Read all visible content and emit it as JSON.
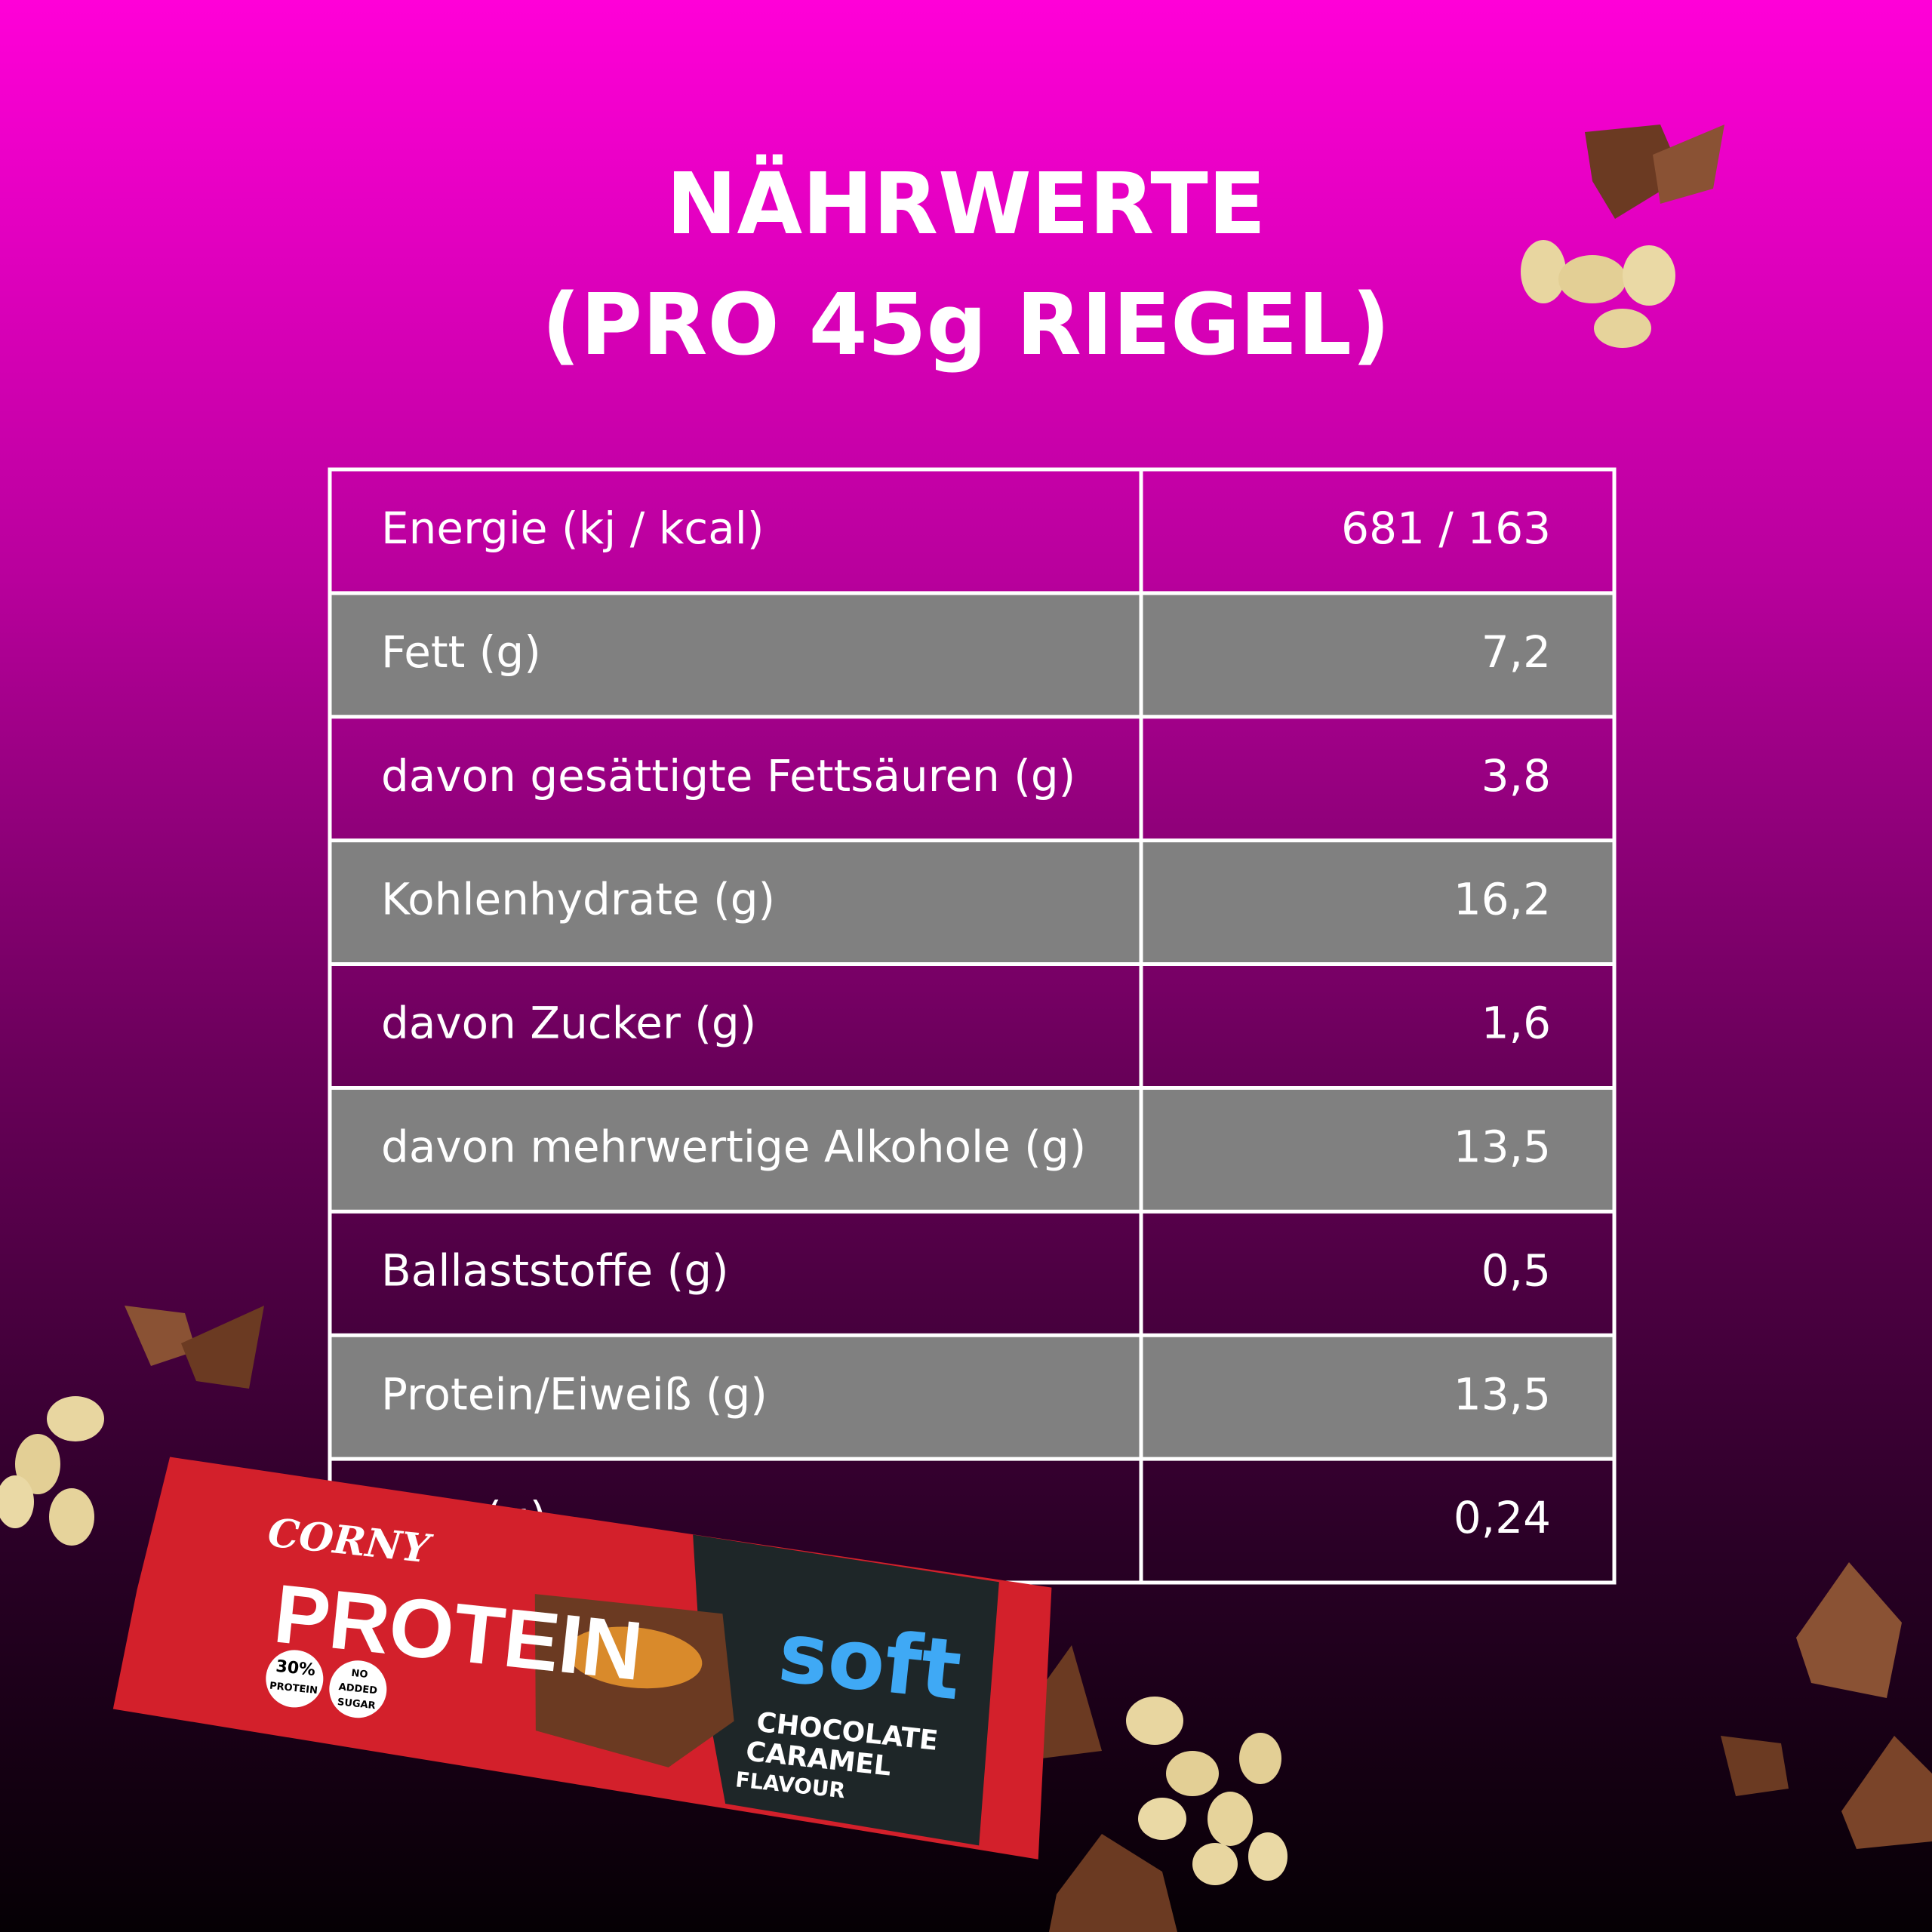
{
  "header": {
    "title": [
      "NÄHRWERTE",
      "(PRO 45g RIEGEL)"
    ]
  },
  "table": {
    "rows": [
      [
        "Energie (kj / kcal)",
        "681 / 163"
      ],
      [
        "Fett (g)",
        "7,2"
      ],
      [
        "davon gesättigte Fettsäuren (g)",
        "3,8"
      ],
      [
        "Kohlenhydrate (g)",
        "16,2"
      ],
      [
        "davon Zucker (g)",
        "1,6"
      ],
      [
        "davon mehrwertige Alkohole (g)",
        "13,5"
      ],
      [
        "Ballaststoffe (g)",
        "0,5"
      ],
      [
        "Protein/Eiweiß (g)",
        "13,5"
      ],
      [
        "Salz (g)",
        "0,24"
      ]
    ]
  },
  "package": {
    "brand": "CORNY",
    "product": "PROTEIN",
    "badge1": [
      "30%",
      "PROTEIN"
    ],
    "badge2": [
      "NO",
      "ADDED",
      "SUGAR"
    ],
    "variant": "soft",
    "flavour": [
      "CHOCOLATE",
      "CARAMEL",
      "FLAVOUR"
    ]
  }
}
